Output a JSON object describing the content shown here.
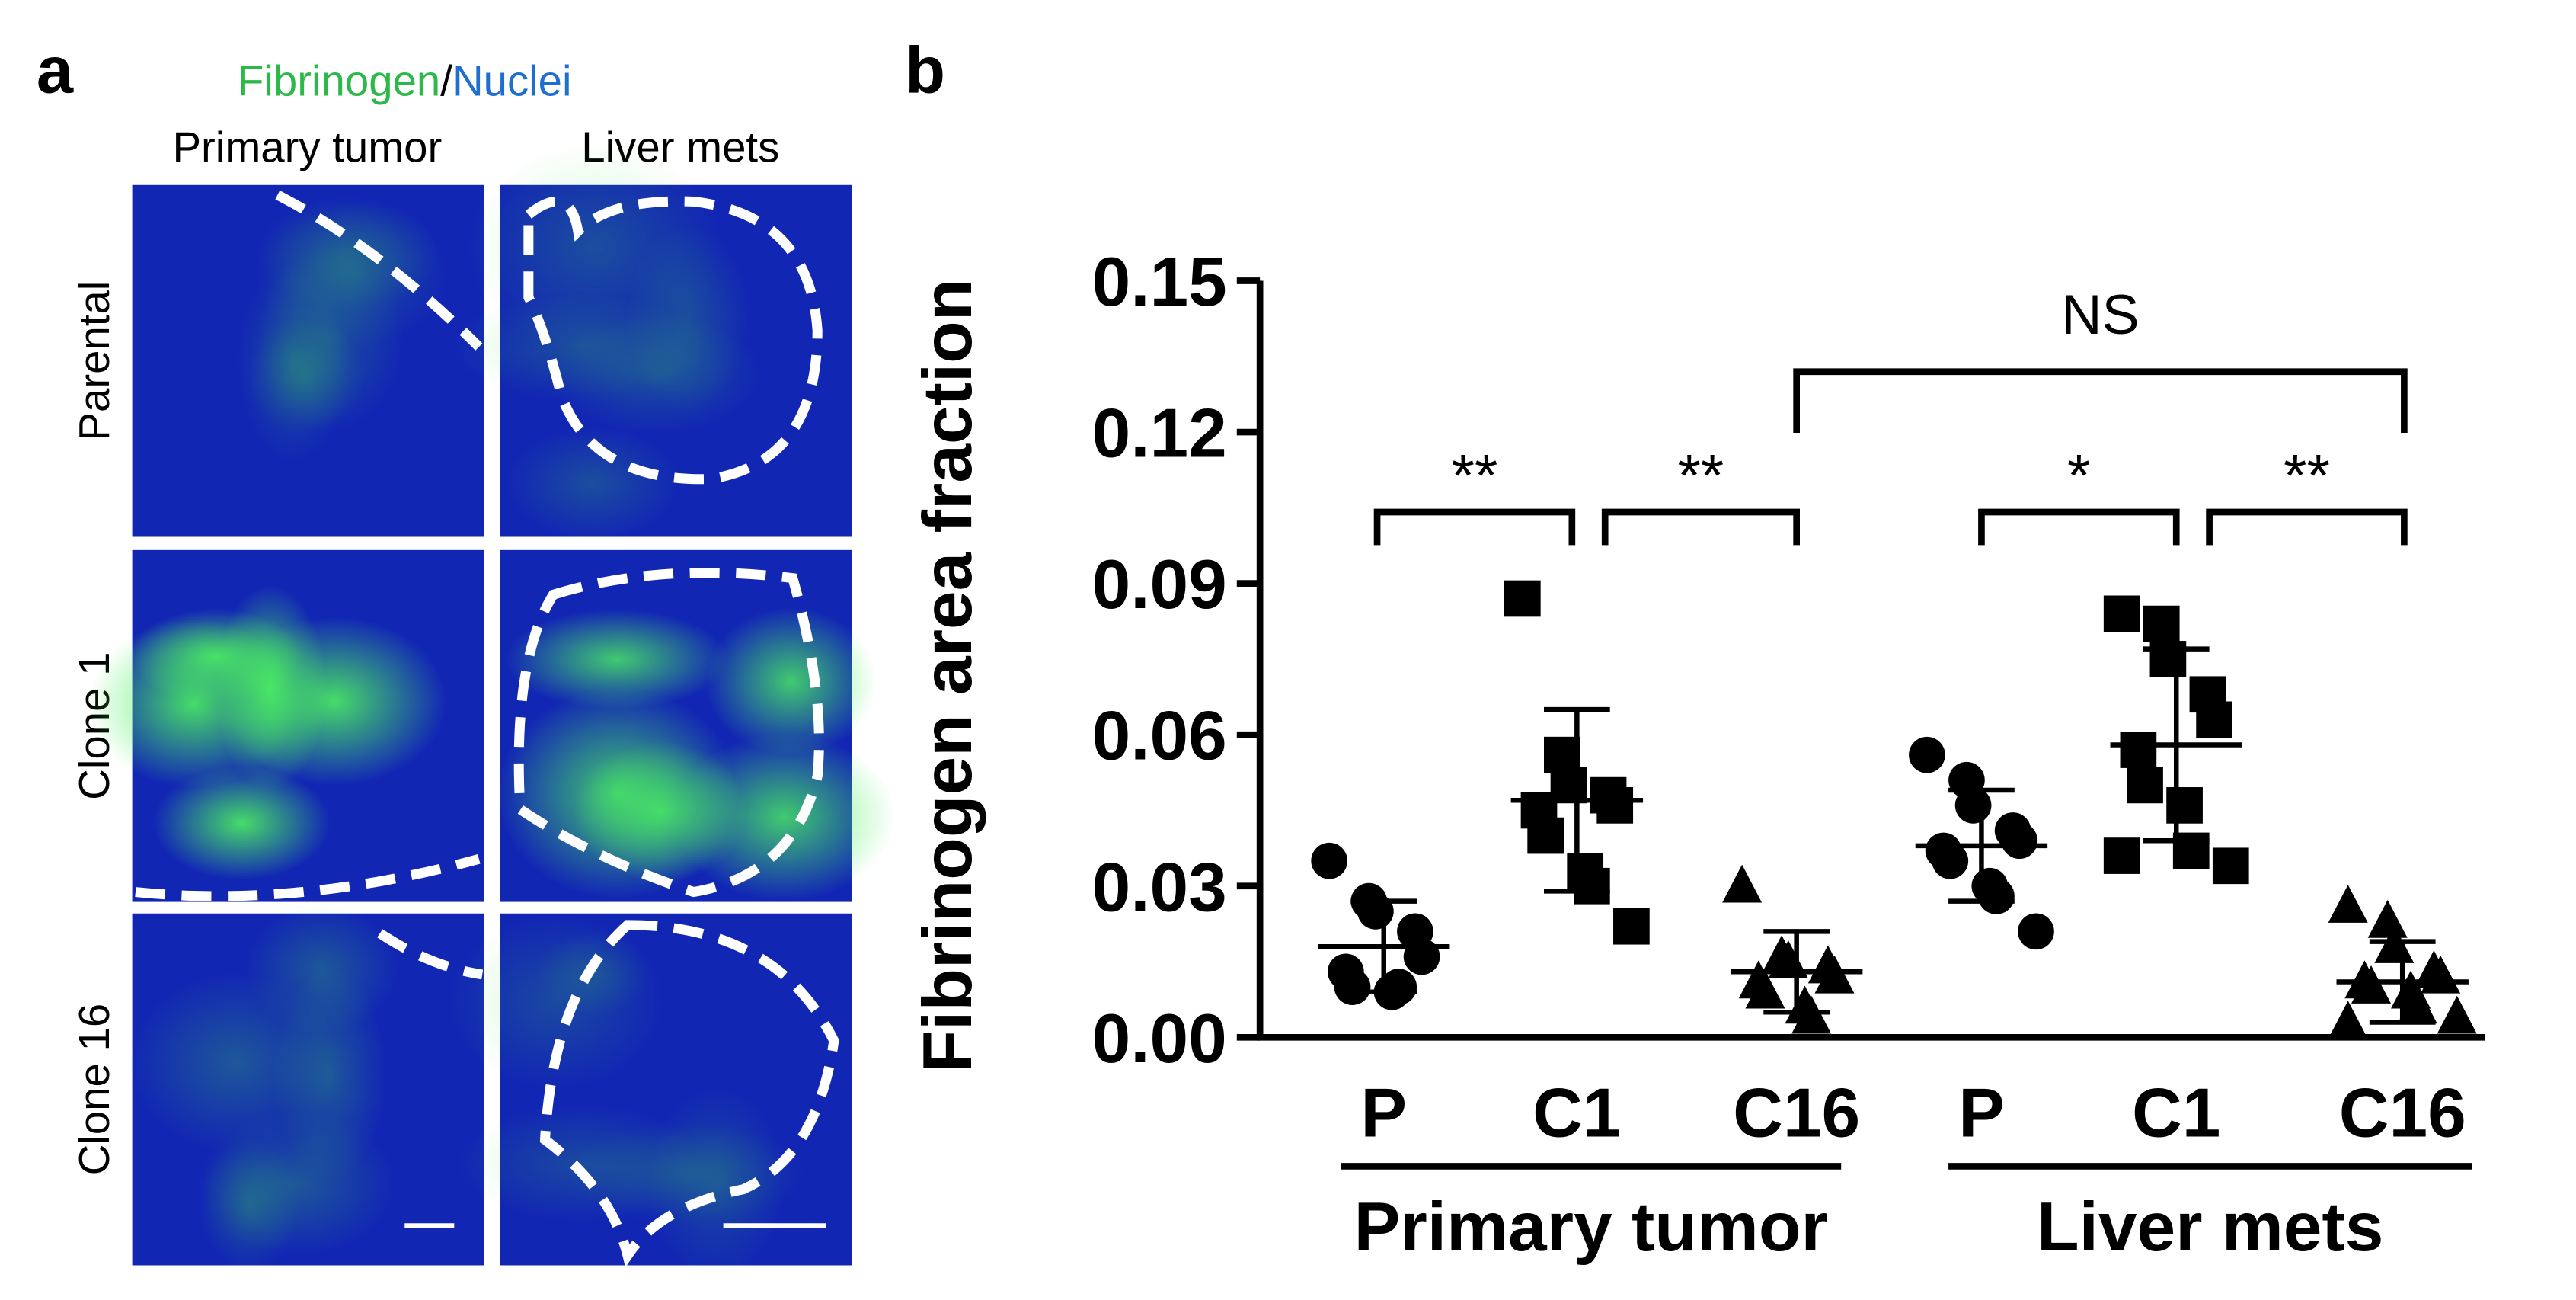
{
  "panel_a": {
    "letter": "a",
    "stain_1": "Fibrinogen",
    "separator": "/",
    "stain_2": "Nuclei",
    "columns": [
      "Primary tumor",
      "Liver mets"
    ],
    "rows": [
      "Parental",
      "Clone 1",
      "Clone 16"
    ]
  },
  "chart_data": {
    "type": "dot_plot",
    "letter": "b",
    "y_label": "Fibrinogen area fraction",
    "categories": [
      "P",
      "C1",
      "C16",
      "P",
      "C1",
      "C16"
    ],
    "group_labels": [
      "Primary tumor",
      "Liver mets"
    ],
    "markers": [
      "circle",
      "square",
      "triangle",
      "circle",
      "square",
      "triangle"
    ],
    "color": "#000000",
    "points": [
      [
        0.035,
        0.027,
        0.025,
        0.021,
        0.016,
        0.013,
        0.01,
        0.009,
        0.01
      ],
      [
        0.087,
        0.056,
        0.05,
        0.048,
        0.046,
        0.045,
        0.04,
        0.033,
        0.03,
        0.022
      ],
      [
        0.03,
        0.016,
        0.015,
        0.014,
        0.012,
        0.011,
        0.009,
        0.006,
        0.004
      ],
      [
        0.056,
        0.051,
        0.046,
        0.041,
        0.039,
        0.037,
        0.035,
        0.03,
        0.028,
        0.021
      ],
      [
        0.084,
        0.082,
        0.075,
        0.068,
        0.063,
        0.057,
        0.05,
        0.046,
        0.037,
        0.034,
        0.036
      ],
      [
        0.026,
        0.023,
        0.018,
        0.013,
        0.012,
        0.011,
        0.01,
        0.009,
        0.006,
        0.004,
        0.003
      ]
    ],
    "means": [
      0.018,
      0.047,
      0.013,
      0.038,
      0.058,
      0.011
    ],
    "sds": [
      0.009,
      0.018,
      0.008,
      0.011,
      0.019,
      0.008
    ],
    "annotations": [
      "**",
      "**",
      "*",
      "**",
      "NS"
    ],
    "ylim": [
      0,
      0.15
    ],
    "yticks": [
      {
        "value": 0,
        "label": "0.00"
      },
      0.03,
      0.06,
      0.09,
      0.12,
      0.15
    ]
  }
}
